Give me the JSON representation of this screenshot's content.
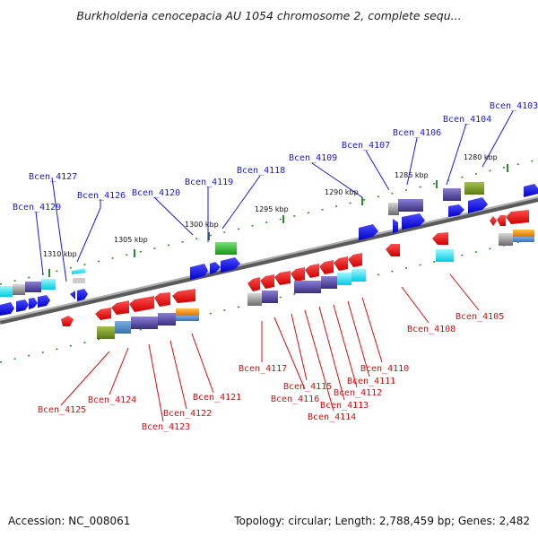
{
  "title": "Burkholderia cenocepacia AU 1054 chromosome 2, complete sequ...",
  "footer": {
    "accession": "Accession: NC_008061",
    "topology": "Topology: circular; Length: 2,788,459 bp; Genes: 2,482"
  },
  "kbp_ticks": [
    "1310 kbp",
    "1305 kbp",
    "1300 kbp",
    "1295 kbp",
    "1290 kbp",
    "1285 kbp",
    "1280 kbp"
  ],
  "top_labels": [
    "Bcen_4129",
    "Bcen_4127",
    "Bcen_4126",
    "Bcen_4120",
    "Bcen_4119",
    "Bcen_4118",
    "Bcen_4109",
    "Bcen_4107",
    "Bcen_4106",
    "Bcen_4104",
    "Bcen_4103"
  ],
  "bottom_labels": [
    "Bcen_4125",
    "Bcen_4124",
    "Bcen_4123",
    "Bcen_4122",
    "Bcen_4121",
    "Bcen_4117",
    "Bcen_4116",
    "Bcen_4115",
    "Bcen_4114",
    "Bcen_4113",
    "Bcen_4112",
    "Bcen_4111",
    "Bcen_4110",
    "Bcen_4108",
    "Bcen_4105"
  ],
  "colors": {
    "backbone": "#808080",
    "top_label": "#1a1ad0",
    "bottom_label": "#d01010",
    "tick": "#2a8a2a",
    "forward_gene": "#1010e0",
    "reverse_gene": "#ee1111",
    "green_feature": "#22b022",
    "olive_feature": "#6b8e23",
    "cyan_feature": "#00d8e8",
    "purple_feature": "#4a3d8f",
    "gray_feature": "#7a7a7a",
    "orange_feature": "#f08a00"
  }
}
